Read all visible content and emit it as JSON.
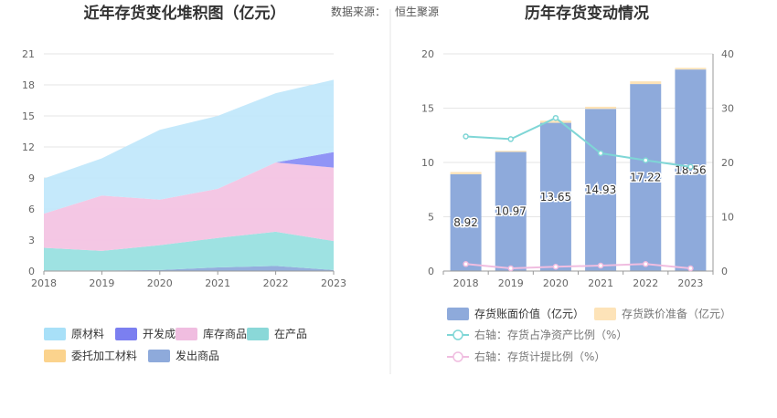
{
  "header": {
    "source_label": "数据来源：",
    "source_value": "恒生聚源"
  },
  "chart_data": [
    {
      "type": "area",
      "stacked": true,
      "title": "近年存货变化堆积图（亿元）",
      "categories": [
        "2018",
        "2019",
        "2020",
        "2021",
        "2022",
        "2023"
      ],
      "ylim": [
        0,
        21
      ],
      "yticks": [
        0,
        3,
        6,
        9,
        12,
        15,
        18,
        21
      ],
      "grid": true,
      "legend_position": "bottom",
      "series": [
        {
          "name": "发出商品",
          "color": "#8eaadb",
          "values": [
            0.05,
            0.05,
            0.1,
            0.35,
            0.5,
            0.1
          ]
        },
        {
          "name": "委托加工材料",
          "color": "#fdd89c",
          "values": [
            0,
            0,
            0,
            0,
            0,
            0
          ]
        },
        {
          "name": "在产品",
          "color": "#99e0e0",
          "values": [
            2.2,
            1.9,
            2.4,
            2.85,
            3.3,
            2.8
          ]
        },
        {
          "name": "库存商品",
          "color": "#f3c4e3",
          "values": [
            3.3,
            5.35,
            4.4,
            4.75,
            6.7,
            7.1
          ]
        },
        {
          "name": "开发成本",
          "color": "#8a8ef5",
          "values": [
            0,
            0,
            0,
            0,
            0,
            1.5
          ]
        },
        {
          "name": "原材料",
          "color": "#c2e8fb",
          "values": [
            3.4,
            3.6,
            6.75,
            7.05,
            6.7,
            7.0
          ]
        }
      ],
      "legend": [
        {
          "name": "原材料",
          "color": "#a8e0f8"
        },
        {
          "name": "开发成本",
          "color": "#7b7ff0"
        },
        {
          "name": "库存商品",
          "color": "#f0bde0"
        },
        {
          "name": "在产品",
          "color": "#8ad8d8"
        },
        {
          "name": "委托加工材料",
          "color": "#fbd38d"
        },
        {
          "name": "发出商品",
          "color": "#8eaadb"
        }
      ]
    },
    {
      "type": "bar",
      "title": "历年存货变动情况",
      "categories": [
        "2018",
        "2019",
        "2020",
        "2021",
        "2022",
        "2023"
      ],
      "ylim": [
        0,
        20
      ],
      "yticks": [
        0,
        5,
        10,
        15,
        20
      ],
      "y2lim": [
        0,
        40
      ],
      "y2ticks": [
        0,
        10,
        20,
        30,
        40
      ],
      "grid": true,
      "legend_position": "bottom",
      "series": [
        {
          "name": "存货账面价值（亿元）",
          "type": "bar",
          "axis": "left",
          "color": "#8eaadb",
          "values": [
            8.92,
            10.97,
            13.65,
            14.93,
            17.22,
            18.56
          ],
          "labels": [
            "8.92",
            "10.97",
            "13.65",
            "14.93",
            "17.22",
            "18.56"
          ]
        },
        {
          "name": "存货跌价准备（亿元）",
          "type": "bar",
          "axis": "left",
          "color": "#fde3b8",
          "values": [
            0.2,
            0.1,
            0.2,
            0.2,
            0.25,
            0.15
          ]
        },
        {
          "name": "右轴：存货占净资产比例（%）",
          "type": "line",
          "axis": "right",
          "color": "#7fd6d6",
          "values": [
            24.8,
            24.3,
            28.2,
            21.7,
            20.4,
            19.2
          ]
        },
        {
          "name": "右轴：存货计提比例（%）",
          "type": "line",
          "axis": "right",
          "color": "#f0bde0",
          "values": [
            1.3,
            0.5,
            0.8,
            1.0,
            1.3,
            0.5
          ]
        }
      ]
    }
  ]
}
